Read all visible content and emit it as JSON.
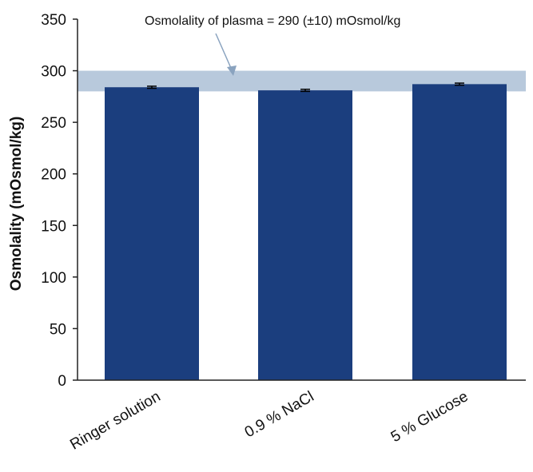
{
  "chart_data": {
    "type": "bar",
    "categories": [
      "Ringer solution",
      "0.9 % NaCl",
      "5 % Glucose"
    ],
    "values": [
      284,
      281,
      287
    ],
    "errors": [
      1,
      1,
      1
    ],
    "ylabel": "Osmolality (mOsmol/kg)",
    "xlabel": "",
    "ylim": [
      0,
      350
    ],
    "yticks": [
      0,
      50,
      100,
      150,
      200,
      250,
      300,
      350
    ],
    "reference_band": {
      "low": 280,
      "high": 300
    },
    "annotation": "Osmolality of plasma = 290 (±10) mOsmol/kg",
    "grid": false,
    "colors": {
      "bar": "#1b3e7e",
      "band": "#b8c9dc",
      "arrow": "#8aa3bf",
      "axis": "#222222"
    }
  }
}
